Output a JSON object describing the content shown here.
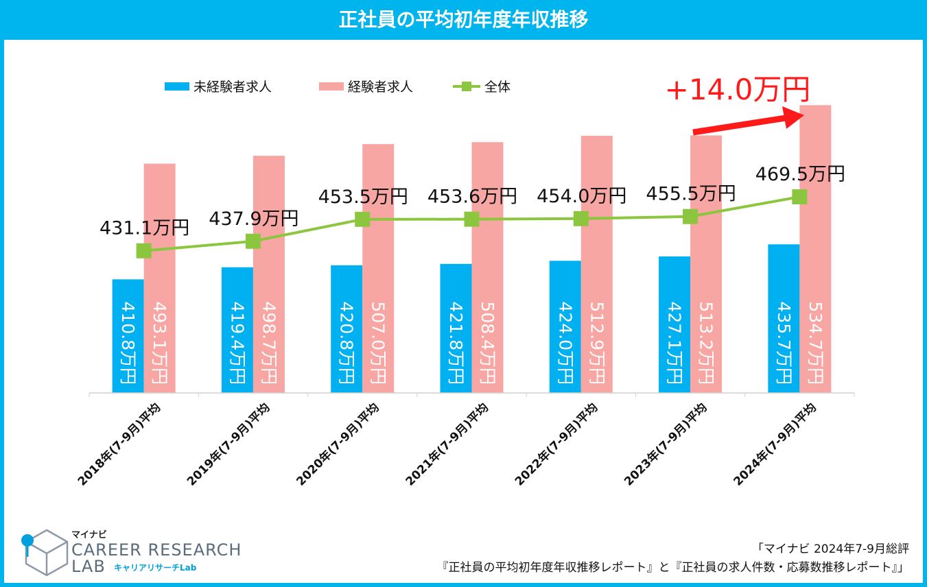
{
  "title": "正社員の平均初年度年収推移",
  "chart_data": {
    "type": "bar+line",
    "categories": [
      "2018年(7-9月)平均",
      "2019年(7-9月)平均",
      "2020年(7-9月)平均",
      "2021年(7-9月)平均",
      "2022年(7-9月)平均",
      "2023年(7-9月)平均",
      "2024年(7-9月)平均"
    ],
    "series": [
      {
        "name": "未経験者求人",
        "type": "bar",
        "color": "#00b0f0",
        "values": [
          410.8,
          419.4,
          420.8,
          421.8,
          424.0,
          427.1,
          435.7
        ],
        "labels": [
          "410.8万円",
          "419.4万円",
          "420.8万円",
          "421.8万円",
          "424.0万円",
          "427.1万円",
          "435.7万円"
        ]
      },
      {
        "name": "経験者求人",
        "type": "bar",
        "color": "#f7a6a4",
        "values": [
          493.1,
          498.7,
          507.0,
          508.4,
          512.9,
          513.2,
          534.7
        ],
        "labels": [
          "493.1万円",
          "498.7万円",
          "507.0万円",
          "508.4万円",
          "512.9万円",
          "513.2万円",
          "534.7万円"
        ]
      },
      {
        "name": "全体",
        "type": "line",
        "color": "#8cc63f",
        "values": [
          431.1,
          437.9,
          453.5,
          453.6,
          454.0,
          455.5,
          469.5
        ],
        "labels": [
          "431.1万円",
          "437.9万円",
          "453.5万円",
          "453.6万円",
          "454.0万円",
          "455.5万円",
          "469.5万円"
        ]
      }
    ],
    "annotation": "+14.0万円",
    "ylim": [
      330,
      550
    ],
    "grid": false,
    "legend_position": "top"
  },
  "logo": {
    "small": "マイナビ",
    "line1": "CAREER RESEARCH",
    "line2": "LAB",
    "sub": "キャリアリサーチLab"
  },
  "source": {
    "line1": "「マイナビ 2024年7-9月総評",
    "line2": "『正社員の平均初年度年収推移レポート』と『正社員の求人件数・応募数推移レポート』」"
  }
}
